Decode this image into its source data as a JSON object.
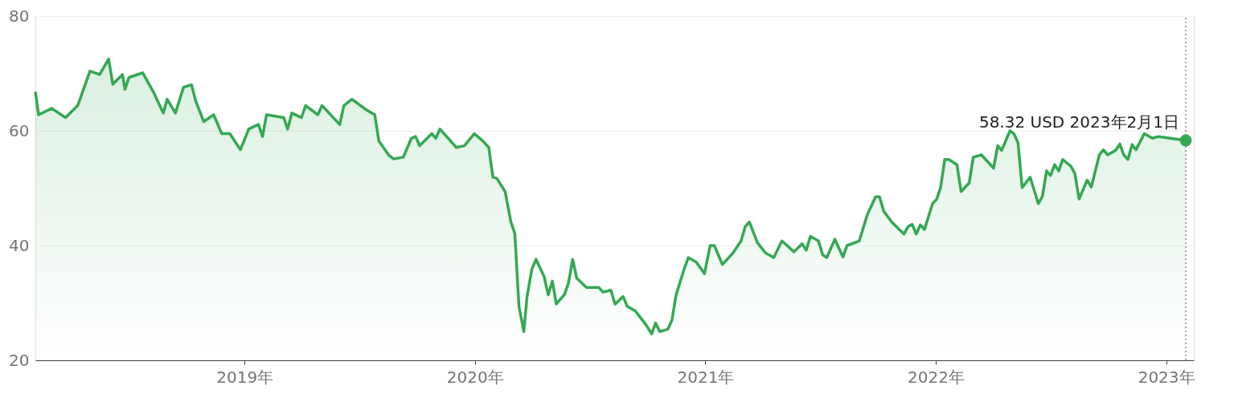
{
  "chart_data": {
    "type": "area",
    "grid": "y",
    "marker": "none",
    "line_style": "solid",
    "xlim": [
      2018.092,
      2023.12
    ],
    "ylim": [
      20,
      80
    ],
    "xticks": [
      {
        "value": 2019,
        "label": "2019年"
      },
      {
        "value": 2020,
        "label": "2020年"
      },
      {
        "value": 2021,
        "label": "2021年"
      },
      {
        "value": 2022,
        "label": "2022年"
      },
      {
        "value": 2023,
        "label": "2023年"
      }
    ],
    "yticks": [
      20,
      40,
      60,
      80
    ],
    "ref_lines": [
      {
        "axis": "x",
        "value": 2023.085,
        "label": null,
        "color": "#888888",
        "line_style": "dotted"
      }
    ],
    "annotations": [
      {
        "text": "58.32 USD  2023年2月1日",
        "x": 2023.085,
        "y": 58.32
      }
    ],
    "series": [
      {
        "color": "#34a853",
        "x": [
          2018.092,
          2018.106,
          2018.163,
          2018.223,
          2018.276,
          2018.329,
          2018.371,
          2018.41,
          2018.428,
          2018.47,
          2018.481,
          2018.498,
          2018.558,
          2018.604,
          2018.647,
          2018.664,
          2018.7,
          2018.735,
          2018.77,
          2018.788,
          2018.823,
          2018.866,
          2018.901,
          2018.936,
          2018.982,
          2019.018,
          2019.06,
          2019.078,
          2019.095,
          2019.17,
          2019.187,
          2019.205,
          2019.247,
          2019.265,
          2019.318,
          2019.336,
          2019.413,
          2019.431,
          2019.466,
          2019.53,
          2019.565,
          2019.583,
          2019.625,
          2019.647,
          2019.689,
          2019.724,
          2019.742,
          2019.76,
          2019.813,
          2019.83,
          2019.848,
          2019.919,
          2019.954,
          2019.997,
          2020.035,
          2020.06,
          2020.078,
          2020.095,
          2020.131,
          2020.156,
          2020.173,
          2020.191,
          2020.212,
          2020.226,
          2020.247,
          2020.265,
          2020.3,
          2020.318,
          2020.336,
          2020.353,
          2020.389,
          2020.406,
          2020.424,
          2020.442,
          2020.484,
          2020.537,
          2020.555,
          2020.59,
          2020.608,
          2020.643,
          2020.661,
          2020.696,
          2020.742,
          2020.767,
          2020.784,
          2020.802,
          2020.837,
          2020.855,
          2020.873,
          2020.908,
          2020.926,
          2020.961,
          2020.996,
          2021.021,
          2021.039,
          2021.074,
          2021.12,
          2021.155,
          2021.173,
          2021.191,
          2021.226,
          2021.261,
          2021.297,
          2021.332,
          2021.385,
          2021.42,
          2021.438,
          2021.456,
          2021.491,
          2021.509,
          2021.527,
          2021.562,
          2021.597,
          2021.615,
          2021.668,
          2021.703,
          2021.739,
          2021.756,
          2021.774,
          2021.809,
          2021.862,
          2021.88,
          2021.898,
          2021.915,
          2021.933,
          2021.951,
          2021.986,
          2022.004,
          2022.021,
          2022.039,
          2022.057,
          2022.092,
          2022.11,
          2022.145,
          2022.163,
          2022.198,
          2022.251,
          2022.269,
          2022.286,
          2022.322,
          2022.339,
          2022.357,
          2022.375,
          2022.41,
          2022.445,
          2022.463,
          2022.481,
          2022.498,
          2022.516,
          2022.534,
          2022.551,
          2022.587,
          2022.604,
          2022.622,
          2022.657,
          2022.675,
          2022.71,
          2022.728,
          2022.746,
          2022.781,
          2022.799,
          2022.816,
          2022.834,
          2022.852,
          2022.869,
          2022.905,
          2022.94,
          2022.968,
          2023.085
        ],
        "values": [
          66.8,
          62.8,
          63.9,
          62.3,
          64.4,
          70.4,
          69.8,
          72.5,
          68.1,
          69.8,
          67.2,
          69.3,
          70.1,
          66.8,
          63.1,
          65.5,
          63.1,
          67.6,
          68.0,
          65.2,
          61.6,
          62.8,
          59.5,
          59.5,
          56.7,
          60.3,
          61.1,
          59.0,
          62.8,
          62.3,
          60.3,
          63.1,
          62.3,
          64.4,
          62.8,
          64.4,
          61.1,
          64.4,
          65.5,
          63.6,
          62.8,
          58.2,
          55.8,
          55.1,
          55.4,
          58.7,
          59.0,
          57.4,
          59.5,
          58.7,
          60.3,
          57.1,
          57.4,
          59.5,
          58.2,
          57.1,
          51.9,
          51.7,
          49.4,
          44.1,
          42.1,
          29.4,
          25.0,
          31.1,
          35.9,
          37.6,
          34.6,
          31.4,
          33.8,
          29.8,
          31.5,
          33.5,
          37.6,
          34.3,
          32.7,
          32.7,
          31.9,
          32.2,
          29.8,
          31.1,
          29.4,
          28.6,
          26.2,
          24.6,
          26.5,
          25.0,
          25.4,
          27.0,
          31.4,
          35.9,
          37.9,
          37.1,
          35.1,
          40.0,
          40.0,
          36.7,
          38.7,
          40.8,
          43.3,
          44.1,
          40.5,
          38.7,
          37.9,
          40.8,
          38.9,
          40.3,
          39.2,
          41.6,
          40.8,
          38.4,
          37.9,
          41.1,
          38.0,
          40.0,
          40.8,
          45.4,
          48.5,
          48.5,
          46.0,
          44.1,
          42.0,
          43.3,
          43.7,
          42.0,
          43.6,
          42.8,
          47.3,
          48.1,
          50.1,
          55.0,
          55.0,
          54.1,
          49.4,
          50.9,
          55.4,
          55.8,
          53.5,
          57.4,
          56.6,
          60.0,
          59.5,
          57.9,
          50.1,
          51.9,
          47.3,
          48.6,
          53.0,
          52.2,
          54.1,
          53.0,
          55.0,
          53.8,
          52.5,
          48.1,
          51.4,
          50.2,
          55.8,
          56.7,
          55.8,
          56.6,
          57.7,
          55.8,
          55.0,
          57.6,
          56.7,
          59.5,
          58.7,
          59.0,
          58.32
        ]
      }
    ]
  }
}
